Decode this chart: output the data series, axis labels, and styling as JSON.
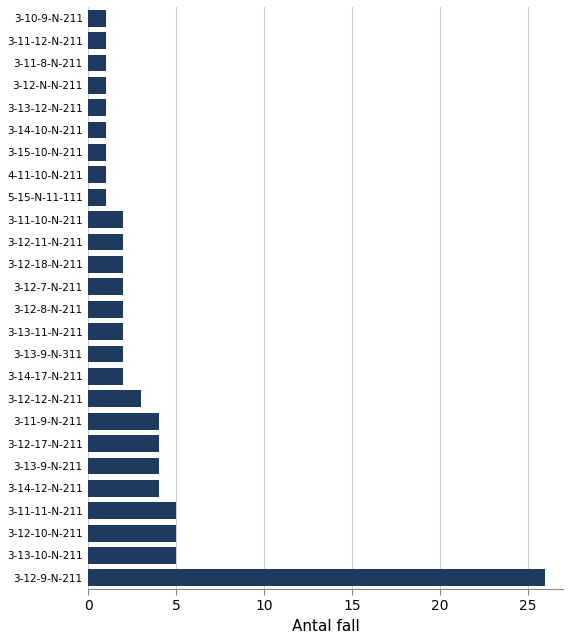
{
  "categories": [
    "3-10-9-N-211",
    "3-11-12-N-211",
    "3-11-8-N-211",
    "3-12-N-N-211",
    "3-13-12-N-211",
    "3-14-10-N-211",
    "3-15-10-N-211",
    "4-11-10-N-211",
    "5-15-N-11-111",
    "3-11-10-N-211",
    "3-12-11-N-211",
    "3-12-18-N-211",
    "3-12-7-N-211",
    "3-12-8-N-211",
    "3-13-11-N-211",
    "3-13-9-N-311",
    "3-14-17-N-211",
    "3-12-12-N-211",
    "3-11-9-N-211",
    "3-12-17-N-211",
    "3-13-9-N-211",
    "3-14-12-N-211",
    "3-11-11-N-211",
    "3-12-10-N-211",
    "3-13-10-N-211",
    "3-12-9-N-211"
  ],
  "values": [
    1,
    1,
    1,
    1,
    1,
    1,
    1,
    1,
    1,
    2,
    2,
    2,
    2,
    2,
    2,
    2,
    2,
    3,
    4,
    4,
    4,
    4,
    5,
    5,
    5,
    26
  ],
  "bar_color": "#1e3a5f",
  "xlabel": "Antal fall",
  "xlim": [
    0,
    27
  ],
  "xticks": [
    0,
    5,
    10,
    15,
    20,
    25
  ],
  "background_color": "#ffffff",
  "grid_color": "#cccccc",
  "bar_height": 0.75,
  "ylabel_fontsize": 7.5,
  "xlabel_fontsize": 11
}
